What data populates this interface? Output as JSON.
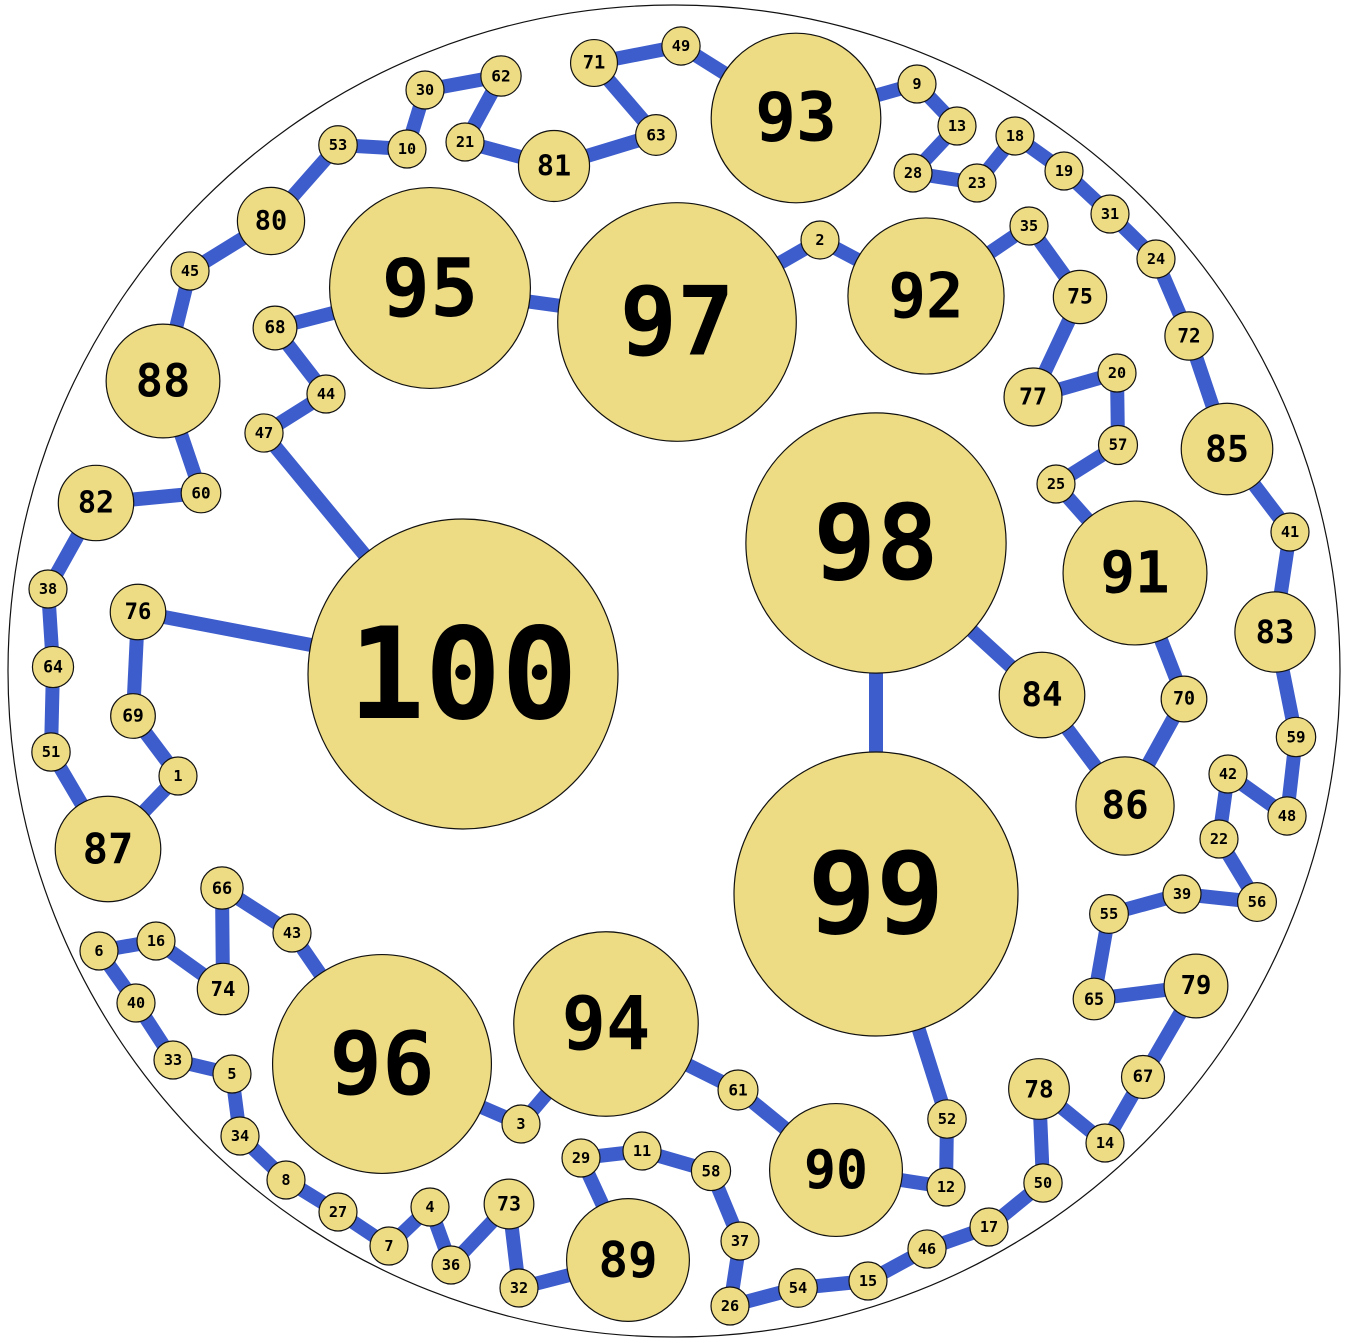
{
  "colors": {
    "edge": "#3d5dcc",
    "node_fill": "#eedc84",
    "node_stroke": "#111111",
    "label": "#000000",
    "boundary": "#111111"
  },
  "nodes": [
    "1",
    "2",
    "3",
    "4",
    "5",
    "6",
    "7",
    "8",
    "9",
    "10",
    "11",
    "12",
    "13",
    "14",
    "15",
    "16",
    "17",
    "18",
    "19",
    "20",
    "21",
    "22",
    "23",
    "24",
    "25",
    "26",
    "27",
    "28",
    "29",
    "30",
    "31",
    "32",
    "33",
    "34",
    "35",
    "36",
    "37",
    "38",
    "39",
    "40",
    "41",
    "42",
    "43",
    "44",
    "45",
    "46",
    "47",
    "48",
    "49",
    "50",
    "51",
    "52",
    "53",
    "54",
    "55",
    "56",
    "57",
    "58",
    "59",
    "60",
    "61",
    "62",
    "63",
    "64",
    "65",
    "66",
    "67",
    "68",
    "69",
    "70",
    "71",
    "72",
    "73",
    "74",
    "75",
    "76",
    "77",
    "78",
    "79",
    "80",
    "81",
    "82",
    "83",
    "84",
    "85",
    "86",
    "87",
    "88",
    "89",
    "90",
    "91",
    "92",
    "93",
    "94",
    "95",
    "96",
    "97",
    "98",
    "99",
    "100"
  ],
  "edges": [
    [
      "100",
      "47"
    ],
    [
      "47",
      "44"
    ],
    [
      "44",
      "68"
    ],
    [
      "68",
      "95"
    ],
    [
      "95",
      "97"
    ],
    [
      "97",
      "2"
    ],
    [
      "2",
      "92"
    ],
    [
      "92",
      "35"
    ],
    [
      "35",
      "75"
    ],
    [
      "75",
      "77"
    ],
    [
      "77",
      "20"
    ],
    [
      "20",
      "57"
    ],
    [
      "57",
      "25"
    ],
    [
      "25",
      "91"
    ],
    [
      "91",
      "70"
    ],
    [
      "70",
      "86"
    ],
    [
      "86",
      "84"
    ],
    [
      "84",
      "98"
    ],
    [
      "98",
      "99"
    ],
    [
      "99",
      "52"
    ],
    [
      "52",
      "12"
    ],
    [
      "12",
      "90"
    ],
    [
      "90",
      "61"
    ],
    [
      "61",
      "94"
    ],
    [
      "94",
      "3"
    ],
    [
      "3",
      "96"
    ],
    [
      "96",
      "43"
    ],
    [
      "43",
      "66"
    ],
    [
      "66",
      "74"
    ],
    [
      "74",
      "16"
    ],
    [
      "16",
      "6"
    ],
    [
      "6",
      "40"
    ],
    [
      "40",
      "33"
    ],
    [
      "33",
      "5"
    ],
    [
      "5",
      "34"
    ],
    [
      "34",
      "8"
    ],
    [
      "8",
      "27"
    ],
    [
      "27",
      "7"
    ],
    [
      "7",
      "4"
    ],
    [
      "4",
      "36"
    ],
    [
      "36",
      "73"
    ],
    [
      "73",
      "32"
    ],
    [
      "32",
      "89"
    ],
    [
      "89",
      "29"
    ],
    [
      "29",
      "11"
    ],
    [
      "11",
      "58"
    ],
    [
      "58",
      "37"
    ],
    [
      "37",
      "26"
    ],
    [
      "26",
      "54"
    ],
    [
      "54",
      "15"
    ],
    [
      "15",
      "46"
    ],
    [
      "46",
      "17"
    ],
    [
      "17",
      "50"
    ],
    [
      "50",
      "78"
    ],
    [
      "78",
      "14"
    ],
    [
      "14",
      "67"
    ],
    [
      "67",
      "79"
    ],
    [
      "79",
      "65"
    ],
    [
      "65",
      "55"
    ],
    [
      "55",
      "39"
    ],
    [
      "39",
      "56"
    ],
    [
      "56",
      "22"
    ],
    [
      "22",
      "42"
    ],
    [
      "42",
      "48"
    ],
    [
      "48",
      "59"
    ],
    [
      "59",
      "83"
    ],
    [
      "83",
      "41"
    ],
    [
      "41",
      "85"
    ],
    [
      "85",
      "72"
    ],
    [
      "72",
      "24"
    ],
    [
      "24",
      "31"
    ],
    [
      "31",
      "19"
    ],
    [
      "19",
      "18"
    ],
    [
      "18",
      "23"
    ],
    [
      "23",
      "28"
    ],
    [
      "28",
      "13"
    ],
    [
      "13",
      "9"
    ],
    [
      "9",
      "93"
    ],
    [
      "93",
      "49"
    ],
    [
      "49",
      "71"
    ],
    [
      "71",
      "63"
    ],
    [
      "63",
      "81"
    ],
    [
      "81",
      "21"
    ],
    [
      "21",
      "62"
    ],
    [
      "62",
      "30"
    ],
    [
      "30",
      "10"
    ],
    [
      "10",
      "53"
    ],
    [
      "53",
      "80"
    ],
    [
      "80",
      "45"
    ],
    [
      "45",
      "88"
    ],
    [
      "88",
      "60"
    ],
    [
      "60",
      "82"
    ],
    [
      "82",
      "38"
    ],
    [
      "38",
      "64"
    ],
    [
      "64",
      "51"
    ],
    [
      "51",
      "87"
    ],
    [
      "87",
      "1"
    ],
    [
      "1",
      "69"
    ],
    [
      "69",
      "76"
    ],
    [
      "76",
      "100"
    ]
  ]
}
